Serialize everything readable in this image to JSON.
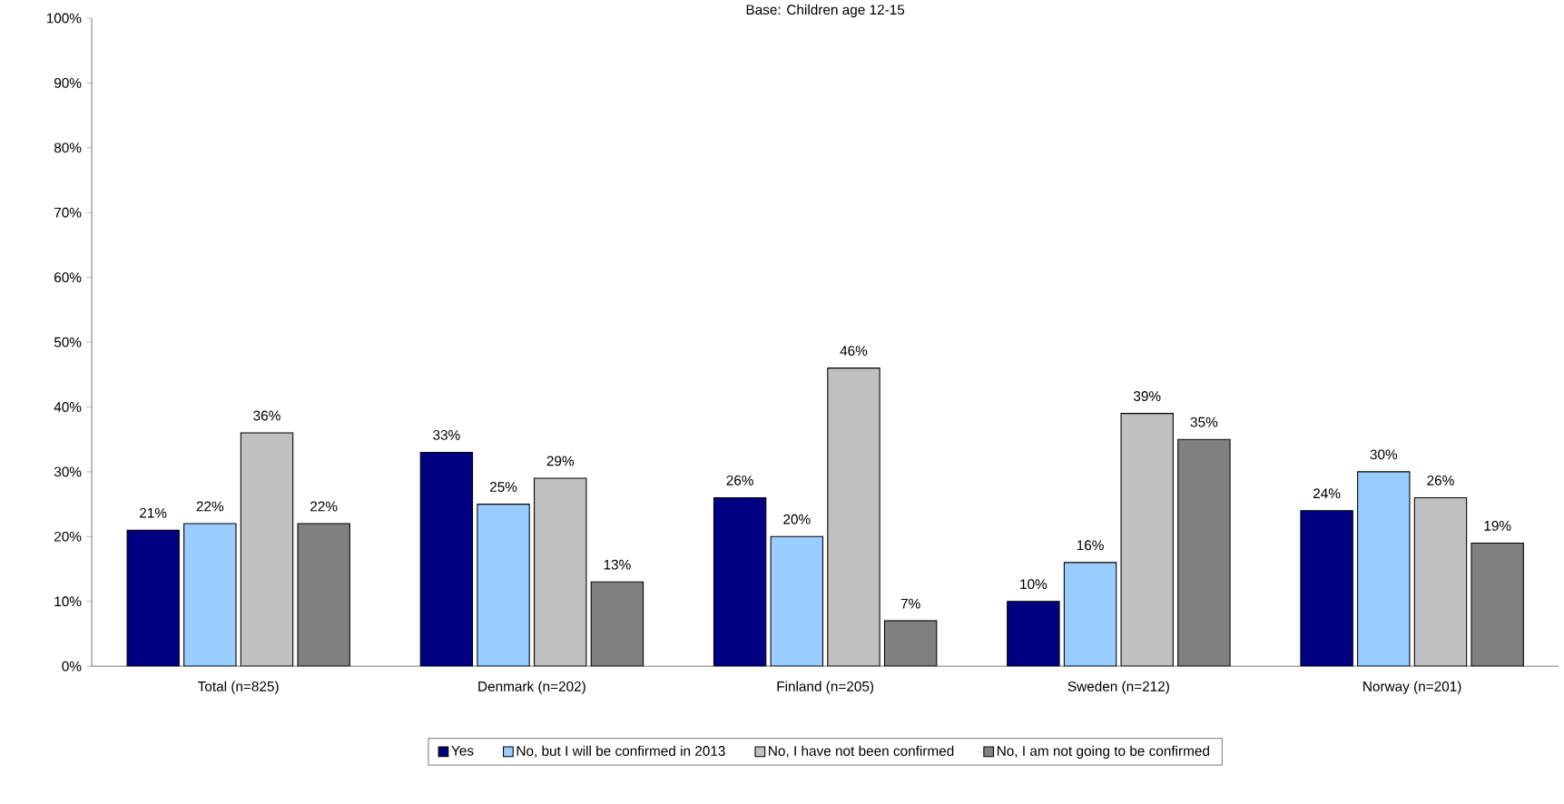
{
  "chart_data": {
    "type": "bar",
    "title": "Base: Children age 12-15",
    "categories": [
      "Total (n=825)",
      "Denmark (n=202)",
      "Finland (n=205)",
      "Sweden (n=212)",
      "Norway (n=201)"
    ],
    "series": [
      {
        "name": "Yes",
        "color": "#000080",
        "values": [
          21,
          33,
          26,
          10,
          24
        ],
        "value_labels": [
          "21%",
          "33%",
          "26%",
          "10%",
          "24%"
        ]
      },
      {
        "name": "No, but I will be confirmed in 2013",
        "color": "#99ccff",
        "values": [
          22,
          25,
          20,
          16,
          30
        ],
        "value_labels": [
          "22%",
          "25%",
          "20%",
          "16%",
          "30%"
        ]
      },
      {
        "name": "No, I have not been confirmed",
        "color": "#c0c0c0",
        "values": [
          36,
          29,
          46,
          39,
          26
        ],
        "value_labels": [
          "36%",
          "29%",
          "46%",
          "39%",
          "26%"
        ]
      },
      {
        "name": "No, I am not going to be confirmed",
        "color": "#808080",
        "values": [
          22,
          13,
          7,
          35,
          19
        ],
        "value_labels": [
          "22%",
          "13%",
          "7%",
          "35%",
          "19%"
        ]
      }
    ],
    "ylim": [
      0,
      100
    ],
    "yticks": [
      {
        "value": 0,
        "label": "0%"
      },
      {
        "value": 10,
        "label": "10%"
      },
      {
        "value": 20,
        "label": "20%"
      },
      {
        "value": 30,
        "label": "30%"
      },
      {
        "value": 40,
        "label": "40%"
      },
      {
        "value": 50,
        "label": "50%"
      },
      {
        "value": 60,
        "label": "60%"
      },
      {
        "value": 70,
        "label": "70%"
      },
      {
        "value": 80,
        "label": "80%"
      },
      {
        "value": 90,
        "label": "90%"
      },
      {
        "value": 100,
        "label": "100%"
      }
    ],
    "grid": false,
    "legend": "bottom"
  }
}
